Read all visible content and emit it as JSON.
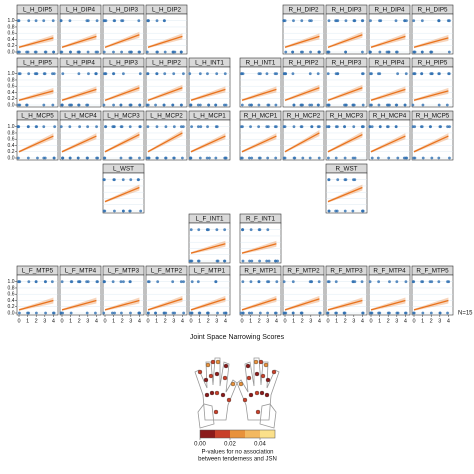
{
  "chart_data": {
    "type": "panel-grid",
    "x": [
      0,
      4
    ],
    "xlim": [
      0,
      4.3
    ],
    "ylim": [
      0,
      1.15
    ],
    "xticks": [
      0,
      1,
      2,
      3,
      4
    ],
    "yticks": [
      {
        "value": 0,
        "label": "0.0"
      },
      {
        "value": 0.2,
        "label": "0.2"
      },
      {
        "value": 0.4,
        "label": "0.4"
      },
      {
        "value": 0.6,
        "label": "0.6"
      },
      {
        "value": 0.8,
        "label": "0.8"
      },
      {
        "value": 1,
        "label": "1.0"
      }
    ],
    "xlabel": "Joint Space Narrowing Scores",
    "note": "N=15",
    "line_color": "#e8731e",
    "point_color": "#2f6fb0",
    "panels": [
      {
        "title": "L_H_DIP5",
        "values": [
          0.15,
          0.45
        ]
      },
      {
        "title": "L_H_DIP4",
        "values": [
          0.15,
          0.5
        ]
      },
      {
        "title": "L_H_DIP3",
        "values": [
          0.15,
          0.55
        ]
      },
      {
        "title": "L_H_DIP2",
        "values": [
          0.15,
          0.5
        ]
      },
      {
        "title": "R_H_DIP2",
        "values": [
          0.15,
          0.5
        ]
      },
      {
        "title": "R_H_DIP3",
        "values": [
          0.15,
          0.55
        ]
      },
      {
        "title": "R_H_DIP4",
        "values": [
          0.15,
          0.5
        ]
      },
      {
        "title": "R_H_DIP5",
        "values": [
          0.15,
          0.45
        ]
      },
      {
        "title": "L_H_PIP5",
        "values": [
          0.15,
          0.45
        ]
      },
      {
        "title": "L_H_PIP4",
        "values": [
          0.15,
          0.5
        ]
      },
      {
        "title": "L_H_PIP3",
        "values": [
          0.15,
          0.55
        ]
      },
      {
        "title": "L_H_PIP2",
        "values": [
          0.15,
          0.55
        ]
      },
      {
        "title": "L_H_INT1",
        "values": [
          0.15,
          0.5
        ]
      },
      {
        "title": "R_H_INT1",
        "values": [
          0.15,
          0.5
        ]
      },
      {
        "title": "R_H_PIP2",
        "values": [
          0.15,
          0.55
        ]
      },
      {
        "title": "R_H_PIP3",
        "values": [
          0.15,
          0.55
        ]
      },
      {
        "title": "R_H_PIP4",
        "values": [
          0.15,
          0.5
        ]
      },
      {
        "title": "R_H_PIP5",
        "values": [
          0.15,
          0.45
        ]
      },
      {
        "title": "L_H_MCP5",
        "values": [
          0.2,
          0.7
        ]
      },
      {
        "title": "L_H_MCP4",
        "values": [
          0.2,
          0.7
        ]
      },
      {
        "title": "L_H_MCP3",
        "values": [
          0.2,
          0.75
        ]
      },
      {
        "title": "L_H_MCP2",
        "values": [
          0.2,
          0.8
        ]
      },
      {
        "title": "L_H_MCP1",
        "values": [
          0.2,
          0.7
        ]
      },
      {
        "title": "R_H_MCP1",
        "values": [
          0.2,
          0.7
        ]
      },
      {
        "title": "R_H_MCP2",
        "values": [
          0.2,
          0.8
        ]
      },
      {
        "title": "R_H_MCP3",
        "values": [
          0.2,
          0.75
        ]
      },
      {
        "title": "R_H_MCP4",
        "values": [
          0.2,
          0.7
        ]
      },
      {
        "title": "R_H_MCP5",
        "values": [
          0.2,
          0.7
        ]
      },
      {
        "title": "L_WST",
        "values": [
          0.3,
          0.75
        ]
      },
      {
        "title": "R_WST",
        "values": [
          0.3,
          0.75
        ]
      },
      {
        "title": "L_F_INT1",
        "values": [
          0.25,
          0.55
        ]
      },
      {
        "title": "R_F_INT1",
        "values": [
          0.25,
          0.55
        ]
      },
      {
        "title": "L_F_MTP5",
        "values": [
          0.1,
          0.4
        ]
      },
      {
        "title": "L_F_MTP4",
        "values": [
          0.1,
          0.4
        ]
      },
      {
        "title": "L_F_MTP3",
        "values": [
          0.1,
          0.4
        ]
      },
      {
        "title": "L_F_MTP2",
        "values": [
          0.1,
          0.45
        ]
      },
      {
        "title": "L_F_MTP1",
        "values": [
          0.1,
          0.45
        ]
      },
      {
        "title": "R_F_MTP1",
        "values": [
          0.1,
          0.45
        ]
      },
      {
        "title": "R_F_MTP2",
        "values": [
          0.1,
          0.45
        ]
      },
      {
        "title": "R_F_MTP3",
        "values": [
          0.1,
          0.4
        ]
      },
      {
        "title": "R_F_MTP4",
        "values": [
          0.1,
          0.4
        ]
      },
      {
        "title": "R_F_MTP5",
        "values": [
          0.1,
          0.4
        ]
      }
    ],
    "legend": {
      "colors": [
        "#8b1a1a",
        "#c8402a",
        "#e8913a",
        "#f3b860",
        "#fbe08a"
      ],
      "lim": [
        0,
        0.05
      ],
      "ticks": [
        {
          "value": 0,
          "label": "0.00"
        },
        {
          "value": 0.02,
          "label": "0.02"
        },
        {
          "value": 0.04,
          "label": "0.04"
        }
      ],
      "caption": [
        "P-values for no association",
        "between tenderness and JSN"
      ]
    }
  }
}
